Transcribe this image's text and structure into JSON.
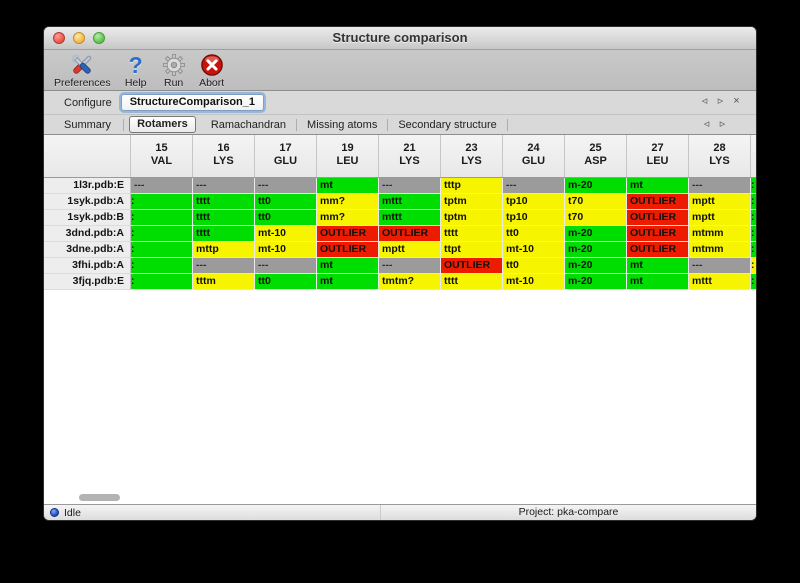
{
  "window": {
    "title": "Structure comparison"
  },
  "toolbar": {
    "items": [
      {
        "label": "Preferences",
        "icon": "tools-icon"
      },
      {
        "label": "Help",
        "icon": "question-icon"
      },
      {
        "label": "Run",
        "icon": "gear-icon"
      },
      {
        "label": "Abort",
        "icon": "abort-icon"
      }
    ]
  },
  "configure": {
    "label": "Configure",
    "task_tab": "StructureComparison_1",
    "nav_left": "◃",
    "nav_right": "▹",
    "nav_close": "×"
  },
  "tabs": {
    "items": [
      "Summary",
      "Rotamers",
      "Ramachandran",
      "Missing atoms",
      "Secondary structure"
    ],
    "active": "Rotamers",
    "nav_left": "◃",
    "nav_right": "▹"
  },
  "colors": {
    "green": "#00dd00",
    "yellow": "#f7f400",
    "red": "#ed1c00",
    "gray": "#9b9b9b"
  },
  "table": {
    "columns": [
      {
        "num": "15",
        "res": "VAL"
      },
      {
        "num": "16",
        "res": "LYS"
      },
      {
        "num": "17",
        "res": "GLU"
      },
      {
        "num": "19",
        "res": "LEU"
      },
      {
        "num": "21",
        "res": "LYS"
      },
      {
        "num": "23",
        "res": "LYS"
      },
      {
        "num": "24",
        "res": "GLU"
      },
      {
        "num": "25",
        "res": "ASP"
      },
      {
        "num": "27",
        "res": "LEU"
      },
      {
        "num": "28",
        "res": "LYS"
      }
    ],
    "rows": [
      {
        "label": "1l3r.pdb:E",
        "tail": "green",
        "cells": [
          {
            "v": "---",
            "c": "gray"
          },
          {
            "v": "---",
            "c": "gray"
          },
          {
            "v": "---",
            "c": "gray"
          },
          {
            "v": "mt",
            "c": "green"
          },
          {
            "v": "---",
            "c": "gray"
          },
          {
            "v": "tttp",
            "c": "yellow"
          },
          {
            "v": "---",
            "c": "gray"
          },
          {
            "v": "m-20",
            "c": "green"
          },
          {
            "v": "mt",
            "c": "green"
          },
          {
            "v": "---",
            "c": "gray"
          }
        ]
      },
      {
        "label": "1syk.pdb:A",
        "tail": "green",
        "cells": [
          {
            "v": ":",
            "c": "green",
            "e": 1
          },
          {
            "v": "tttt",
            "c": "green"
          },
          {
            "v": "tt0",
            "c": "green"
          },
          {
            "v": "mm?",
            "c": "yellow"
          },
          {
            "v": "mttt",
            "c": "green"
          },
          {
            "v": "tptm",
            "c": "yellow"
          },
          {
            "v": "tp10",
            "c": "yellow"
          },
          {
            "v": "t70",
            "c": "yellow"
          },
          {
            "v": "OUTLIER",
            "c": "red"
          },
          {
            "v": "mptt",
            "c": "yellow"
          }
        ]
      },
      {
        "label": "1syk.pdb:B",
        "tail": "green",
        "cells": [
          {
            "v": ":",
            "c": "green",
            "e": 1
          },
          {
            "v": "tttt",
            "c": "green"
          },
          {
            "v": "tt0",
            "c": "green"
          },
          {
            "v": "mm?",
            "c": "yellow"
          },
          {
            "v": "mttt",
            "c": "green"
          },
          {
            "v": "tptm",
            "c": "yellow"
          },
          {
            "v": "tp10",
            "c": "yellow"
          },
          {
            "v": "t70",
            "c": "yellow"
          },
          {
            "v": "OUTLIER",
            "c": "red"
          },
          {
            "v": "mptt",
            "c": "yellow"
          }
        ]
      },
      {
        "label": "3dnd.pdb:A",
        "tail": "green",
        "cells": [
          {
            "v": ":",
            "c": "green",
            "e": 1
          },
          {
            "v": "tttt",
            "c": "green"
          },
          {
            "v": "mt-10",
            "c": "yellow"
          },
          {
            "v": "OUTLIER",
            "c": "red"
          },
          {
            "v": "OUTLIER",
            "c": "red"
          },
          {
            "v": "tttt",
            "c": "yellow"
          },
          {
            "v": "tt0",
            "c": "yellow"
          },
          {
            "v": "m-20",
            "c": "green"
          },
          {
            "v": "OUTLIER",
            "c": "red"
          },
          {
            "v": "mtmm",
            "c": "yellow"
          }
        ]
      },
      {
        "label": "3dne.pdb:A",
        "tail": "green",
        "cells": [
          {
            "v": ":",
            "c": "green",
            "e": 1
          },
          {
            "v": "mttp",
            "c": "yellow"
          },
          {
            "v": "mt-10",
            "c": "yellow"
          },
          {
            "v": "OUTLIER",
            "c": "red"
          },
          {
            "v": "mptt",
            "c": "yellow"
          },
          {
            "v": "ttpt",
            "c": "yellow"
          },
          {
            "v": "mt-10",
            "c": "yellow"
          },
          {
            "v": "m-20",
            "c": "green"
          },
          {
            "v": "OUTLIER",
            "c": "red"
          },
          {
            "v": "mtmm",
            "c": "yellow"
          }
        ]
      },
      {
        "label": "3fhi.pdb:A",
        "tail": "yellow",
        "cells": [
          {
            "v": ":",
            "c": "green",
            "e": 1
          },
          {
            "v": "---",
            "c": "gray"
          },
          {
            "v": "---",
            "c": "gray"
          },
          {
            "v": "mt",
            "c": "green"
          },
          {
            "v": "---",
            "c": "gray"
          },
          {
            "v": "OUTLIER",
            "c": "red"
          },
          {
            "v": "tt0",
            "c": "yellow"
          },
          {
            "v": "m-20",
            "c": "green"
          },
          {
            "v": "mt",
            "c": "green"
          },
          {
            "v": "---",
            "c": "gray"
          }
        ]
      },
      {
        "label": "3fjq.pdb:E",
        "tail": "green",
        "cells": [
          {
            "v": ":",
            "c": "green",
            "e": 1
          },
          {
            "v": "tttm",
            "c": "yellow"
          },
          {
            "v": "tt0",
            "c": "green"
          },
          {
            "v": "mt",
            "c": "green"
          },
          {
            "v": "tmtm?",
            "c": "yellow"
          },
          {
            "v": "tttt",
            "c": "yellow"
          },
          {
            "v": "mt-10",
            "c": "yellow"
          },
          {
            "v": "m-20",
            "c": "green"
          },
          {
            "v": "mt",
            "c": "green"
          },
          {
            "v": "mttt",
            "c": "yellow"
          }
        ]
      }
    ]
  },
  "statusbar": {
    "status": "Idle",
    "project": "Project: pka-compare"
  }
}
